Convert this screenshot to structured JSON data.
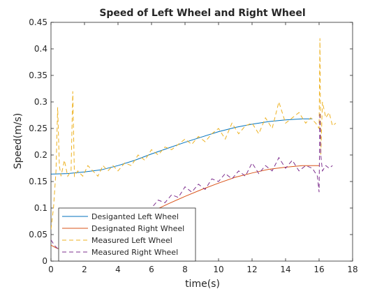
{
  "chart_data": {
    "type": "line",
    "title": "Speed of Left Wheel and Right Wheel",
    "xlabel": "time(s)",
    "ylabel": "Speed(m/s)",
    "xlim": [
      0,
      18
    ],
    "ylim": [
      0,
      0.45
    ],
    "x_ticks": [
      0,
      2,
      4,
      6,
      8,
      10,
      12,
      14,
      16,
      18
    ],
    "y_ticks": [
      0,
      0.05,
      0.1,
      0.15,
      0.2,
      0.25,
      0.3,
      0.35,
      0.4,
      0.45
    ],
    "grid": false,
    "legend_position": "bottom-left",
    "series": [
      {
        "name": "Desiganted Left Wheel",
        "color": "#0072BD",
        "style": "solid",
        "x": [
          0,
          1,
          2,
          3,
          4,
          5,
          6,
          7,
          8,
          9,
          10,
          11,
          12,
          13,
          14,
          15,
          15.6
        ],
        "y": [
          0.164,
          0.165,
          0.168,
          0.172,
          0.18,
          0.19,
          0.202,
          0.213,
          0.224,
          0.234,
          0.244,
          0.252,
          0.258,
          0.263,
          0.266,
          0.268,
          0.268
        ]
      },
      {
        "name": "Designated Right Wheel",
        "color": "#D95319",
        "style": "solid",
        "x": [
          0,
          0.3,
          0.6,
          1,
          2,
          3,
          4,
          5,
          6,
          7,
          8,
          9,
          10,
          11,
          12,
          13,
          14,
          15,
          16
        ],
        "y": [
          0.03,
          0.025,
          0.022,
          0.022,
          0.032,
          0.047,
          0.063,
          0.078,
          0.093,
          0.108,
          0.122,
          0.135,
          0.147,
          0.158,
          0.166,
          0.173,
          0.177,
          0.18,
          0.18
        ]
      },
      {
        "name": "Measured Left Wheel",
        "color": "#EDB120",
        "style": "dashed",
        "x": [
          0,
          0.15,
          0.3,
          0.4,
          0.5,
          0.6,
          0.8,
          1.0,
          1.2,
          1.3,
          1.4,
          1.6,
          1.9,
          2.2,
          2.5,
          2.8,
          3.1,
          3.4,
          3.7,
          4.0,
          4.4,
          4.8,
          5.2,
          5.6,
          6.0,
          6.4,
          6.8,
          7.2,
          7.6,
          8.0,
          8.4,
          8.8,
          9.2,
          9.6,
          10.0,
          10.4,
          10.8,
          11.2,
          11.6,
          12.0,
          12.4,
          12.8,
          13.2,
          13.6,
          14.0,
          14.4,
          14.8,
          15.2,
          15.5,
          15.8,
          16.0,
          16.05,
          16.1,
          16.2,
          16.4,
          16.6,
          16.8,
          17.0
        ],
        "y": [
          0.06,
          0.1,
          0.17,
          0.29,
          0.18,
          0.16,
          0.19,
          0.16,
          0.17,
          0.32,
          0.16,
          0.17,
          0.16,
          0.18,
          0.17,
          0.16,
          0.18,
          0.17,
          0.18,
          0.17,
          0.185,
          0.18,
          0.2,
          0.19,
          0.21,
          0.2,
          0.215,
          0.21,
          0.22,
          0.23,
          0.22,
          0.235,
          0.225,
          0.24,
          0.25,
          0.23,
          0.26,
          0.24,
          0.255,
          0.26,
          0.24,
          0.27,
          0.25,
          0.3,
          0.26,
          0.27,
          0.28,
          0.26,
          0.27,
          0.26,
          0.25,
          0.42,
          0.2,
          0.3,
          0.27,
          0.28,
          0.255,
          0.26
        ]
      },
      {
        "name": "Measured Right Wheel",
        "color": "#7E2F8E",
        "style": "dashed",
        "x": [
          0,
          0.2,
          0.5,
          1.0,
          1.5,
          2.0,
          2.5,
          3.0,
          3.5,
          4.0,
          4.5,
          5.0,
          5.5,
          6.0,
          6.4,
          6.8,
          7.2,
          7.6,
          8.0,
          8.4,
          8.8,
          9.2,
          9.6,
          10.0,
          10.4,
          10.8,
          11.2,
          11.6,
          12.0,
          12.4,
          12.8,
          13.2,
          13.6,
          14.0,
          14.4,
          14.8,
          15.2,
          15.6,
          15.9,
          16.0,
          16.05,
          16.1,
          16.2,
          16.4,
          16.6,
          16.8
        ],
        "y": [
          0.04,
          0.03,
          0.02,
          0.025,
          0.03,
          0.04,
          0.05,
          0.055,
          0.06,
          0.065,
          0.075,
          0.085,
          0.09,
          0.1,
          0.115,
          0.11,
          0.125,
          0.12,
          0.14,
          0.13,
          0.145,
          0.135,
          0.155,
          0.15,
          0.165,
          0.155,
          0.17,
          0.16,
          0.185,
          0.165,
          0.18,
          0.17,
          0.195,
          0.175,
          0.19,
          0.17,
          0.18,
          0.175,
          0.16,
          0.13,
          0.28,
          0.2,
          0.17,
          0.18,
          0.175,
          0.18
        ]
      }
    ]
  }
}
